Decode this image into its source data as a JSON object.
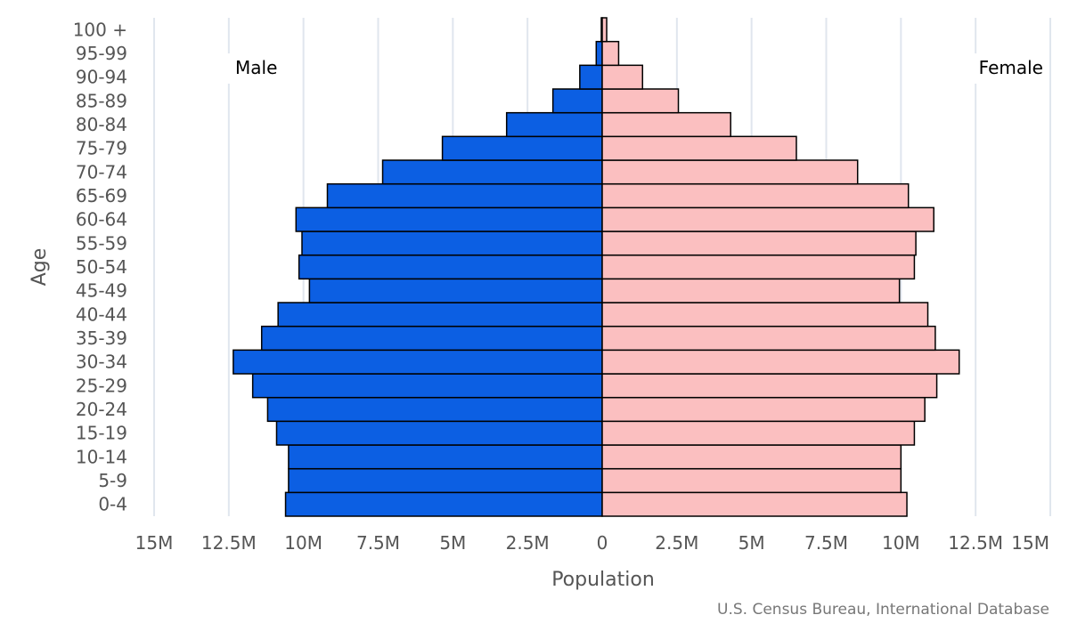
{
  "chart_data": {
    "type": "bar",
    "orientation": "horizontal",
    "subtype": "population-pyramid",
    "xlabel": "Population",
    "ylabel": "Age",
    "xlim": [
      -15000000,
      15000000
    ],
    "x_ticks": [
      -15000000,
      -12500000,
      -10000000,
      -7500000,
      -5000000,
      -2500000,
      0,
      2500000,
      5000000,
      7500000,
      10000000,
      12500000,
      15000000
    ],
    "x_tick_labels": [
      "15M",
      "12.5M",
      "10M",
      "7.5M",
      "5M",
      "2.5M",
      "0",
      "2.5M",
      "5M",
      "7.5M",
      "10M",
      "12.5M",
      "15M"
    ],
    "categories": [
      "0-4",
      "5-9",
      "10-14",
      "15-19",
      "20-24",
      "25-29",
      "30-34",
      "35-39",
      "40-44",
      "45-49",
      "50-54",
      "55-59",
      "60-64",
      "65-69",
      "70-74",
      "75-79",
      "80-84",
      "85-89",
      "90-94",
      "95-99",
      "100 +"
    ],
    "grid": "vertical",
    "series": [
      {
        "name": "Male",
        "color": "#0c5fe3",
        "values": [
          10600000,
          10500000,
          10500000,
          10900000,
          11200000,
          11700000,
          12350000,
          11400000,
          10850000,
          9800000,
          10150000,
          10050000,
          10250000,
          9200000,
          7350000,
          5350000,
          3200000,
          1650000,
          750000,
          200000,
          30000
        ]
      },
      {
        "name": "Female",
        "color": "#fbbfc0",
        "values": [
          10200000,
          10000000,
          10000000,
          10450000,
          10800000,
          11200000,
          11950000,
          11150000,
          10900000,
          9950000,
          10450000,
          10500000,
          11100000,
          10250000,
          8550000,
          6500000,
          4300000,
          2550000,
          1350000,
          550000,
          150000
        ]
      }
    ]
  },
  "labels": {
    "male": "Male",
    "female": "Female",
    "credit": "U.S. Census Bureau, International Database"
  }
}
